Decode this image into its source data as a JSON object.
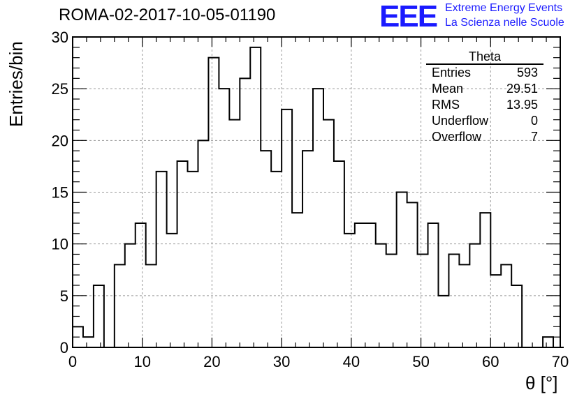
{
  "chart_data": {
    "type": "bar",
    "title": "ROMA-02-2017-10-05-01190",
    "xlabel": "θ [°]",
    "ylabel": "Entries/bin",
    "xlim": [
      0,
      70
    ],
    "ylim": [
      0,
      30
    ],
    "bin_width": 1.5,
    "x": [
      0.75,
      2.25,
      3.75,
      5.25,
      6.75,
      8.25,
      9.75,
      11.25,
      12.75,
      14.25,
      15.75,
      17.25,
      18.75,
      20.25,
      21.75,
      23.25,
      24.75,
      26.25,
      27.75,
      29.25,
      30.75,
      32.25,
      33.75,
      35.25,
      36.75,
      38.25,
      39.75,
      41.25,
      42.75,
      44.25,
      45.75,
      47.25,
      48.75,
      50.25,
      51.75,
      53.25,
      54.75,
      56.25,
      57.75,
      59.25,
      60.75,
      62.25,
      63.75,
      65.25,
      66.75,
      68.25,
      69.75
    ],
    "values": [
      2,
      1,
      6,
      0,
      8,
      10,
      12,
      8,
      17,
      11,
      18,
      17,
      20,
      28,
      25,
      22,
      26,
      29,
      19,
      17,
      23,
      13,
      19,
      25,
      22,
      18,
      11,
      12,
      12,
      10,
      9,
      15,
      14,
      9,
      12,
      5,
      9,
      8,
      10,
      13,
      7,
      8,
      6,
      0,
      0,
      1,
      0
    ],
    "xticks": [
      "0",
      "10",
      "20",
      "30",
      "40",
      "50",
      "60",
      "70"
    ],
    "yticks": [
      "0",
      "5",
      "10",
      "15",
      "20",
      "25",
      "30"
    ],
    "grid": true,
    "legend": "top-right"
  },
  "stats": {
    "title": "Theta",
    "rows": [
      {
        "label": "Entries",
        "value": "593"
      },
      {
        "label": "Mean",
        "value": "29.51"
      },
      {
        "label": "RMS",
        "value": "13.95"
      },
      {
        "label": "Underflow",
        "value": "0"
      },
      {
        "label": "Overflow",
        "value": "7"
      }
    ]
  },
  "logo": {
    "mark": "EEE",
    "line1": "Extreme Energy Events",
    "line2": "La Scienza nelle Scuole",
    "color": "#1a1aff"
  }
}
